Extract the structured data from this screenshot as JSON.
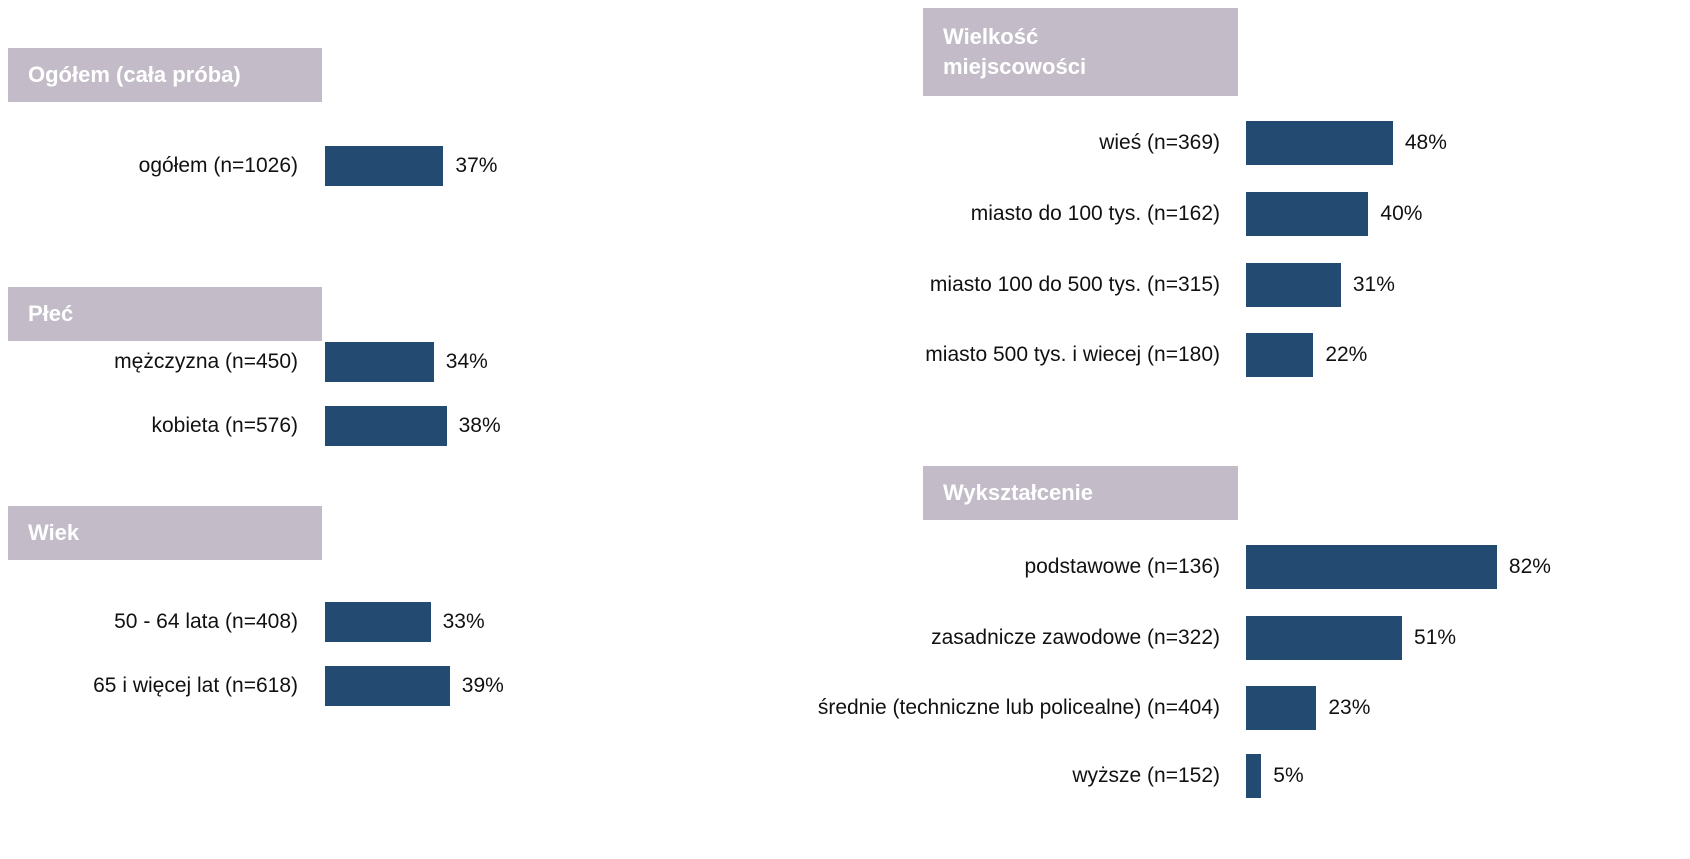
{
  "chart_data": [
    {
      "type": "bar",
      "title": "Ogółem (cała próba)",
      "categories": [
        "ogółem (n=1026)"
      ],
      "values": [
        37
      ],
      "value_labels": [
        "37%"
      ],
      "color": "#234a70",
      "header_color": "#c3bcc8"
    },
    {
      "type": "bar",
      "title": "Płeć",
      "categories": [
        "mężczyzna (n=450)",
        "kobieta (n=576)"
      ],
      "values": [
        34,
        38
      ],
      "value_labels": [
        "34%",
        "38%"
      ],
      "color": "#234a70",
      "header_color": "#c3bcc8"
    },
    {
      "type": "bar",
      "title": "Wiek",
      "categories": [
        "50 - 64 lata (n=408)",
        "65 i więcej lat (n=618)"
      ],
      "values": [
        33,
        39
      ],
      "value_labels": [
        "33%",
        "39%"
      ],
      "color": "#234a70",
      "header_color": "#c3bcc8"
    },
    {
      "type": "bar",
      "title": "Wielkość miejscowości",
      "categories": [
        "wieś (n=369)",
        "miasto do 100 tys. (n=162)",
        "miasto 100 do 500 tys. (n=315)",
        "miasto 500 tys. i wiecej (n=180)"
      ],
      "values": [
        48,
        40,
        31,
        22
      ],
      "value_labels": [
        "48%",
        "40%",
        "31%",
        "22%"
      ],
      "color": "#234a70",
      "header_color": "#c3bcc8"
    },
    {
      "type": "bar",
      "title": "Wykształcenie",
      "categories": [
        "podstawowe (n=136)",
        "zasadnicze zawodowe (n=322)",
        "średnie (techniczne lub policealne) (n=404)",
        "wyższe (n=152)"
      ],
      "values": [
        82,
        51,
        23,
        5
      ],
      "value_labels": [
        "82%",
        "51%",
        "23%",
        "5%"
      ],
      "color": "#234a70",
      "header_color": "#c3bcc8"
    }
  ]
}
